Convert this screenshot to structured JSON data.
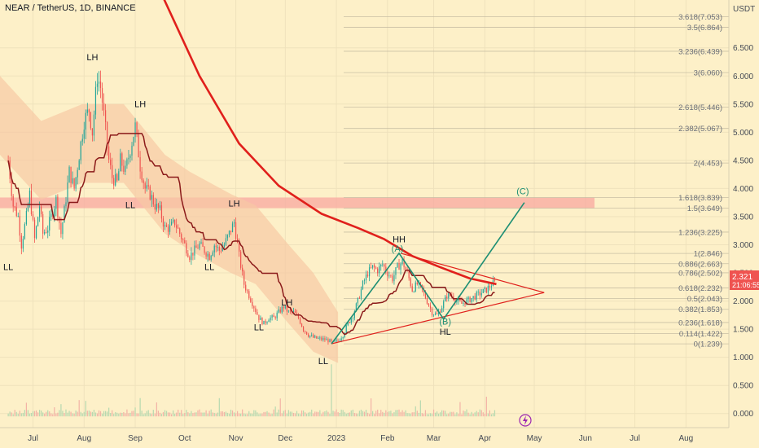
{
  "header": {
    "title": "NEAR / TetherUS, 1D, BINANCE"
  },
  "price_badge": {
    "value": "2.321",
    "countdown": "21:06:55",
    "color": "#ef5350"
  },
  "chart_data": {
    "type": "candlestick",
    "title": "NEAR / TetherUS, 1D, BINANCE",
    "currency": "USDT",
    "y_ticks": [
      "6.500",
      "6.000",
      "5.500",
      "5.000",
      "4.500",
      "4.000",
      "3.500",
      "3.000",
      "2.500",
      "2.000",
      "1.500",
      "1.000",
      "0.500",
      "0.000"
    ],
    "y_tick_values": [
      6.5,
      6.0,
      5.5,
      5.0,
      4.5,
      4.0,
      3.5,
      3.0,
      2.5,
      2.0,
      1.5,
      1.0,
      0.5,
      0.0
    ],
    "x_ticks": [
      "Jul",
      "Aug",
      "Sep",
      "Oct",
      "Nov",
      "Dec",
      "2023",
      "Feb",
      "Mar",
      "Apr",
      "May",
      "Jun",
      "Jul",
      "Aug"
    ],
    "x_tick_days": [
      15,
      46,
      77,
      107,
      138,
      168,
      199,
      230,
      258,
      289,
      319,
      350,
      380,
      411
    ],
    "x_range_days": [
      -5,
      437
    ],
    "y_range_price": [
      -0.25,
      7.35
    ],
    "price_path": [
      [
        0,
        4.5
      ],
      [
        3,
        3.7
      ],
      [
        6,
        3.5
      ],
      [
        8,
        3.0
      ],
      [
        11,
        3.5
      ],
      [
        13,
        3.9
      ],
      [
        16,
        3.1
      ],
      [
        19,
        3.7
      ],
      [
        21,
        3.2
      ],
      [
        24,
        3.3
      ],
      [
        27,
        3.6
      ],
      [
        29,
        3.8
      ],
      [
        32,
        3.2
      ],
      [
        34,
        3.6
      ],
      [
        37,
        4.3
      ],
      [
        40,
        4.0
      ],
      [
        43,
        4.6
      ],
      [
        46,
        5.2
      ],
      [
        49,
        5.4
      ],
      [
        51,
        5.0
      ],
      [
        54,
        6.0
      ],
      [
        56,
        5.8
      ],
      [
        58,
        5.3
      ],
      [
        61,
        4.5
      ],
      [
        63,
        4.2
      ],
      [
        66,
        4.1
      ],
      [
        68,
        4.5
      ],
      [
        71,
        4.3
      ],
      [
        74,
        4.7
      ],
      [
        77,
        5.1
      ],
      [
        80,
        4.4
      ],
      [
        83,
        4.0
      ],
      [
        86,
        3.9
      ],
      [
        89,
        3.7
      ],
      [
        92,
        3.6
      ],
      [
        95,
        3.3
      ],
      [
        98,
        3.3
      ],
      [
        101,
        3.4
      ],
      [
        104,
        3.2
      ],
      [
        107,
        3.0
      ],
      [
        110,
        2.8
      ],
      [
        113,
        2.9
      ],
      [
        116,
        3.0
      ],
      [
        119,
        2.9
      ],
      [
        122,
        2.8
      ],
      [
        125,
        3.0
      ],
      [
        128,
        2.9
      ],
      [
        131,
        3.0
      ],
      [
        134,
        3.2
      ],
      [
        137,
        3.4
      ],
      [
        140,
        2.8
      ],
      [
        143,
        2.3
      ],
      [
        146,
        2.1
      ],
      [
        149,
        1.9
      ],
      [
        152,
        1.7
      ],
      [
        155,
        1.6
      ],
      [
        158,
        1.7
      ],
      [
        161,
        1.7
      ],
      [
        164,
        1.8
      ],
      [
        167,
        1.9
      ],
      [
        170,
        1.8
      ],
      [
        173,
        1.8
      ],
      [
        176,
        1.7
      ],
      [
        179,
        1.5
      ],
      [
        182,
        1.4
      ],
      [
        185,
        1.35
      ],
      [
        188,
        1.33
      ],
      [
        191,
        1.32
      ],
      [
        194,
        1.3
      ],
      [
        197,
        1.25
      ],
      [
        200,
        1.3
      ],
      [
        203,
        1.4
      ],
      [
        206,
        1.6
      ],
      [
        209,
        1.75
      ],
      [
        212,
        2.0
      ],
      [
        215,
        2.3
      ],
      [
        218,
        2.5
      ],
      [
        221,
        2.6
      ],
      [
        224,
        2.55
      ],
      [
        227,
        2.65
      ],
      [
        230,
        2.5
      ],
      [
        233,
        2.4
      ],
      [
        236,
        2.6
      ],
      [
        239,
        2.7
      ],
      [
        242,
        2.5
      ],
      [
        245,
        2.2
      ],
      [
        248,
        2.3
      ],
      [
        251,
        2.2
      ],
      [
        254,
        2.0
      ],
      [
        257,
        1.8
      ],
      [
        260,
        1.75
      ],
      [
        263,
        1.9
      ],
      [
        266,
        2.1
      ],
      [
        269,
        2.1
      ],
      [
        272,
        2.0
      ],
      [
        275,
        1.95
      ],
      [
        278,
        2.0
      ],
      [
        281,
        2.05
      ],
      [
        284,
        2.1
      ],
      [
        287,
        2.15
      ],
      [
        290,
        2.2
      ],
      [
        293,
        2.3
      ],
      [
        295,
        2.32
      ]
    ],
    "ma_200_red": [
      [
        -5,
        16.6
      ],
      [
        53,
        10.3
      ],
      [
        86,
        7.9
      ],
      [
        116,
        6.0
      ],
      [
        140,
        4.8
      ],
      [
        164,
        4.05
      ],
      [
        190,
        3.55
      ],
      [
        212,
        3.3
      ],
      [
        228,
        3.1
      ],
      [
        245,
        2.8
      ],
      [
        262,
        2.6
      ],
      [
        280,
        2.4
      ],
      [
        296,
        2.3
      ]
    ],
    "cloud_band_upper": [
      [
        -5,
        6.0
      ],
      [
        20,
        5.2
      ],
      [
        45,
        5.5
      ],
      [
        70,
        5.5
      ],
      [
        95,
        4.6
      ],
      [
        110,
        4.3
      ],
      [
        135,
        3.9
      ],
      [
        150,
        3.7
      ],
      [
        170,
        3.0
      ],
      [
        185,
        2.5
      ],
      [
        200,
        1.8
      ]
    ],
    "horizontal_zone": {
      "from": 3.65,
      "to": 3.84
    },
    "fib_levels": [
      {
        "label": "3.618(7.053)",
        "value": 7.053
      },
      {
        "label": "3.5(6.864)",
        "value": 6.864
      },
      {
        "label": "3.236(6.439)",
        "value": 6.439
      },
      {
        "label": "3(6.060)",
        "value": 6.06
      },
      {
        "label": "2.618(5.446)",
        "value": 5.446
      },
      {
        "label": "2.382(5.067)",
        "value": 5.067
      },
      {
        "label": "2(4.453)",
        "value": 4.453
      },
      {
        "label": "1.618(3.839)",
        "value": 3.839
      },
      {
        "label": "1.5(3.649)",
        "value": 3.649
      },
      {
        "label": "1.236(3.225)",
        "value": 3.225
      },
      {
        "label": "1(2.846)",
        "value": 2.846
      },
      {
        "label": "0.886(2.663)",
        "value": 2.663
      },
      {
        "label": "0.786(2.502)",
        "value": 2.502
      },
      {
        "label": "0.618(2.232)",
        "value": 2.232
      },
      {
        "label": "0.5(2.043)",
        "value": 2.043
      },
      {
        "label": "0.382(1.853)",
        "value": 1.853
      },
      {
        "label": "0.236(1.618)",
        "value": 1.618
      },
      {
        "label": "0.114(1.422)",
        "value": 1.422
      },
      {
        "label": "0(1.239)",
        "value": 1.239
      }
    ],
    "annotations_black": [
      {
        "text": "LH",
        "day": 51,
        "price": 6.28
      },
      {
        "text": "LH",
        "day": 80,
        "price": 5.45
      },
      {
        "text": "LL",
        "day": 0,
        "price": 2.55
      },
      {
        "text": "LL",
        "day": 74,
        "price": 3.65
      },
      {
        "text": "LL",
        "day": 122,
        "price": 2.55
      },
      {
        "text": "LH",
        "day": 137,
        "price": 3.68
      },
      {
        "text": "LL",
        "day": 152,
        "price": 1.48
      },
      {
        "text": "LH",
        "day": 169,
        "price": 1.92
      },
      {
        "text": "LL",
        "day": 191,
        "price": 0.88
      },
      {
        "text": "HH",
        "day": 237,
        "price": 3.04
      },
      {
        "text": "HL",
        "day": 265,
        "price": 1.4
      }
    ],
    "annotations_wave": [
      {
        "text": "(A)",
        "day": 236,
        "price": 2.88
      },
      {
        "text": "(B)",
        "day": 265,
        "price": 1.58
      },
      {
        "text": "(C)",
        "day": 312,
        "price": 3.9
      }
    ],
    "wave_path": [
      [
        196,
        1.24
      ],
      [
        237,
        2.85
      ],
      [
        264,
        1.68
      ],
      [
        313,
        3.75
      ]
    ],
    "triangle": {
      "lower": [
        [
          196,
          1.24
        ],
        [
          325,
          2.15
        ]
      ],
      "upper": [
        [
          238,
          2.85
        ],
        [
          325,
          2.15
        ]
      ]
    },
    "volume_scale_max": 4.0
  }
}
